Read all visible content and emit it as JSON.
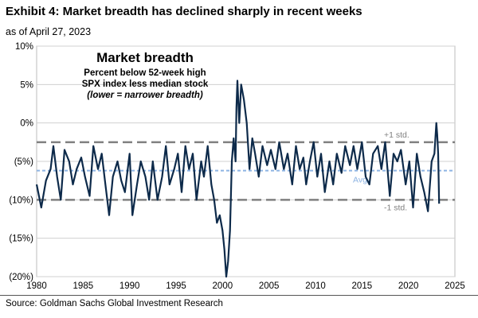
{
  "header": {
    "title": "Exhibit 4: Market breadth has declined sharply in recent weeks",
    "subtitle": "as of April 27, 2023"
  },
  "source": "Source: Goldman Sachs Global Investment Research",
  "chart_data": {
    "type": "line",
    "annotation": {
      "heading": "Market breadth",
      "line1": "Percent below 52-week high",
      "line2": "SPX index less median stock",
      "line3": "(lower = narrower breadth)"
    },
    "ref_lines": [
      {
        "label": "+1 std.",
        "value": -2.5,
        "color": "#808080"
      },
      {
        "label": "Avg",
        "value": -6.2,
        "color": "#8EB4E3"
      },
      {
        "label": "-1 std.",
        "value": -10.0,
        "color": "#808080"
      }
    ],
    "xlim": [
      1980,
      2025
    ],
    "ylim": [
      -20,
      10
    ],
    "x_ticks": [
      "1980",
      "1985",
      "1990",
      "1995",
      "2000",
      "2005",
      "2010",
      "2015",
      "2020",
      "2025"
    ],
    "y_ticks": [
      {
        "value": 10,
        "label": "10%"
      },
      {
        "value": 5,
        "label": "5%"
      },
      {
        "value": 0,
        "label": "0%"
      },
      {
        "value": -5,
        "label": "(5%)"
      },
      {
        "value": -10,
        "label": "(10%)"
      },
      {
        "value": -15,
        "label": "(15%)"
      },
      {
        "value": -20,
        "label": "(20%)"
      }
    ],
    "series": [
      {
        "color": "#0D2A4A",
        "x": [
          1980.0,
          1980.5,
          1981.0,
          1981.5,
          1981.8,
          1982.2,
          1982.6,
          1983.0,
          1983.5,
          1983.9,
          1984.3,
          1984.8,
          1985.2,
          1985.7,
          1986.1,
          1986.6,
          1987.0,
          1987.4,
          1987.8,
          1988.2,
          1988.7,
          1989.1,
          1989.5,
          1990.0,
          1990.3,
          1990.8,
          1991.2,
          1991.7,
          1992.1,
          1992.5,
          1993.0,
          1993.5,
          1993.9,
          1994.3,
          1994.8,
          1995.2,
          1995.6,
          1996.0,
          1996.4,
          1996.8,
          1997.2,
          1997.7,
          1998.0,
          1998.4,
          1998.8,
          1999.1,
          1999.4,
          1999.7,
          2000.0,
          2000.2,
          2000.4,
          2000.6,
          2000.8,
          2001.0,
          2001.2,
          2001.4,
          2001.5,
          2001.6,
          2001.8,
          2002.0,
          2002.3,
          2002.6,
          2002.9,
          2003.2,
          2003.5,
          2003.9,
          2004.3,
          2004.8,
          2005.2,
          2005.7,
          2006.1,
          2006.6,
          2007.0,
          2007.5,
          2007.9,
          2008.3,
          2008.7,
          2009.0,
          2009.4,
          2009.8,
          2010.2,
          2010.6,
          2011.0,
          2011.5,
          2011.9,
          2012.3,
          2012.8,
          2013.2,
          2013.7,
          2014.1,
          2014.5,
          2015.0,
          2015.4,
          2015.8,
          2016.2,
          2016.7,
          2017.1,
          2017.5,
          2018.0,
          2018.4,
          2018.8,
          2019.2,
          2019.7,
          2020.1,
          2020.5,
          2020.9,
          2021.3,
          2021.7,
          2022.1,
          2022.5,
          2022.8,
          2023.0,
          2023.1,
          2023.2,
          2023.3
        ],
        "y": [
          -8,
          -11,
          -7.5,
          -6,
          -3,
          -7,
          -10,
          -3.5,
          -5,
          -8,
          -6,
          -4.5,
          -7,
          -9.5,
          -3,
          -6,
          -4,
          -8,
          -12,
          -7,
          -5,
          -7.5,
          -9,
          -4,
          -12,
          -8,
          -5,
          -7,
          -10,
          -5,
          -10,
          -7,
          -3,
          -8,
          -6,
          -4,
          -9,
          -3,
          -6,
          -4,
          -10,
          -5,
          -7,
          -3,
          -8,
          -10,
          -13,
          -12,
          -14,
          -16.5,
          -20,
          -18,
          -14,
          -5,
          -2,
          -5,
          2,
          5.5,
          0,
          5,
          3,
          0,
          -6,
          -2,
          -4,
          -7,
          -3,
          -5.5,
          -3.5,
          -6,
          -2.5,
          -6,
          -4,
          -8,
          -3,
          -6,
          -4.5,
          -8,
          -5,
          -2.5,
          -7,
          -4,
          -9,
          -5,
          -8,
          -4,
          -6.5,
          -3,
          -5.5,
          -3,
          -6,
          -2.5,
          -7,
          -8,
          -4,
          -3,
          -6,
          -2.5,
          -9.5,
          -4,
          -5,
          -3.5,
          -8,
          -5,
          -11,
          -4,
          -7,
          -9,
          -11.5,
          -5,
          -4,
          0,
          -1.5,
          -4,
          -10.5
        ]
      }
    ]
  }
}
